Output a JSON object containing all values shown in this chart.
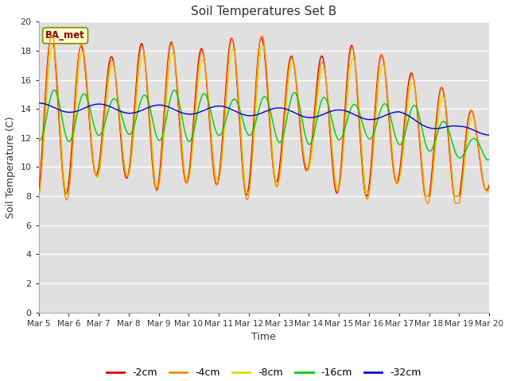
{
  "title": "Soil Temperatures Set B",
  "xlabel": "Time",
  "ylabel": "Soil Temperature (C)",
  "annotation": "BA_met",
  "ylim": [
    0,
    20
  ],
  "yticks": [
    0,
    2,
    4,
    6,
    8,
    10,
    12,
    14,
    16,
    18,
    20
  ],
  "xtick_labels": [
    "Mar 5",
    "Mar 6",
    "Mar 7",
    "Mar 8",
    "Mar 9",
    "Mar 10",
    "Mar 11",
    "Mar 12",
    "Mar 13",
    "Mar 14",
    "Mar 15",
    "Mar 16",
    "Mar 17",
    "Mar 18",
    "Mar 19",
    "Mar 20"
  ],
  "legend_labels": [
    "-2cm",
    "-4cm",
    "-8cm",
    "-16cm",
    "-32cm"
  ],
  "legend_colors": [
    "#dd0000",
    "#ff8800",
    "#dddd00",
    "#00cc00",
    "#0000dd"
  ],
  "plot_bg": "#e0e0e0",
  "fig_bg": "#ffffff",
  "grid_color": "#ffffff"
}
